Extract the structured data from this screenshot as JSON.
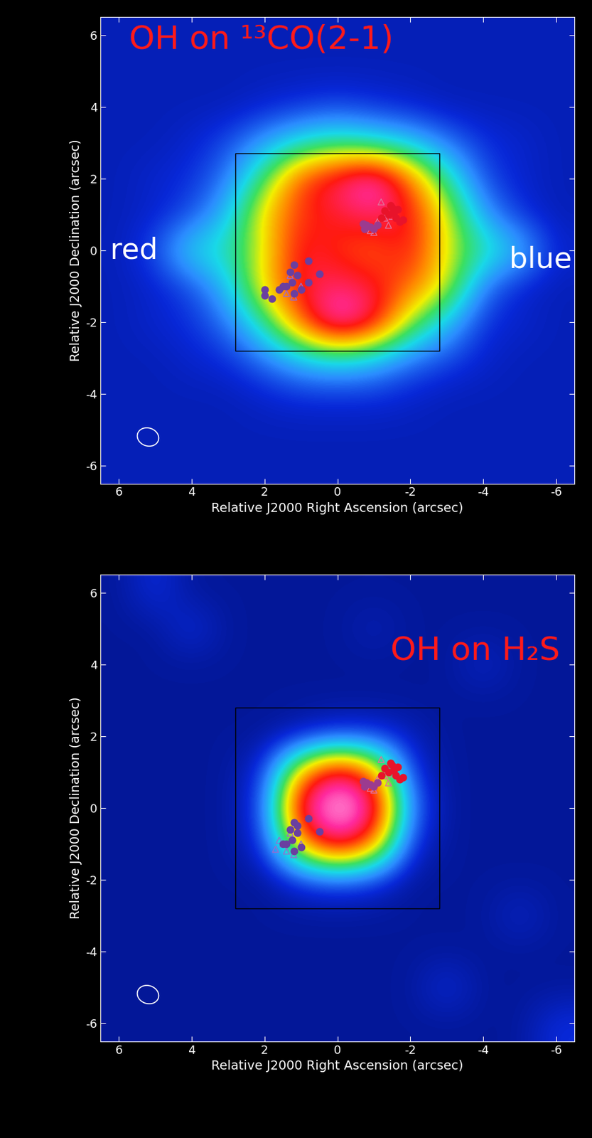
{
  "chart_data": [
    {
      "type": "heatmap",
      "title": "OH on ¹³CO(2-1)",
      "x_label": "Relative J2000 Right Ascension (arcsec)",
      "y_label": "Relative J2000 Declination (arcsec)",
      "xlim": [
        6.5,
        -6.5
      ],
      "ylim": [
        -6.5,
        6.5
      ],
      "xticks": [
        6,
        4,
        2,
        0,
        -2,
        -4,
        -6
      ],
      "yticks": [
        -6,
        -4,
        -2,
        0,
        2,
        4,
        6
      ],
      "annotations": [
        "red",
        "blue"
      ],
      "color_range": [
        0,
        1
      ],
      "cells": {
        "x": [
          6,
          5,
          4,
          3,
          2,
          1,
          0,
          -1,
          -2,
          -3,
          -4,
          -5,
          -6
        ],
        "y": [
          6,
          5,
          4,
          3,
          2,
          1,
          0,
          -1,
          -2,
          -3,
          -4,
          -5,
          -6
        ],
        "values": [
          [
            0.08,
            0.08,
            0.08,
            0.08,
            0.08,
            0.08,
            0.08,
            0.08,
            0.08,
            0.08,
            0.08,
            0.08,
            0.08
          ],
          [
            0.08,
            0.08,
            0.08,
            0.08,
            0.08,
            0.08,
            0.08,
            0.08,
            0.08,
            0.08,
            0.08,
            0.08,
            0.08
          ],
          [
            0.08,
            0.08,
            0.08,
            0.08,
            0.1,
            0.12,
            0.14,
            0.12,
            0.1,
            0.08,
            0.08,
            0.08,
            0.08
          ],
          [
            0.08,
            0.08,
            0.1,
            0.15,
            0.25,
            0.35,
            0.4,
            0.35,
            0.3,
            0.2,
            0.12,
            0.1,
            0.08
          ],
          [
            0.08,
            0.1,
            0.12,
            0.2,
            0.45,
            0.75,
            0.85,
            0.98,
            0.7,
            0.4,
            0.15,
            0.1,
            0.08
          ],
          [
            0.08,
            0.1,
            0.15,
            0.3,
            0.6,
            0.75,
            0.8,
            0.85,
            0.8,
            0.55,
            0.25,
            0.12,
            0.08
          ],
          [
            0.08,
            0.15,
            0.35,
            0.38,
            0.55,
            0.82,
            0.75,
            0.7,
            0.8,
            0.55,
            0.4,
            0.3,
            0.1
          ],
          [
            0.08,
            0.1,
            0.15,
            0.3,
            0.6,
            0.8,
            0.85,
            0.8,
            0.7,
            0.55,
            0.2,
            0.1,
            0.08
          ],
          [
            0.08,
            0.1,
            0.12,
            0.2,
            0.4,
            0.72,
            0.98,
            0.85,
            0.5,
            0.3,
            0.12,
            0.1,
            0.08
          ],
          [
            0.08,
            0.08,
            0.1,
            0.12,
            0.2,
            0.3,
            0.35,
            0.3,
            0.2,
            0.15,
            0.1,
            0.08,
            0.08
          ],
          [
            0.08,
            0.08,
            0.08,
            0.08,
            0.1,
            0.12,
            0.12,
            0.12,
            0.1,
            0.08,
            0.08,
            0.08,
            0.08
          ],
          [
            0.08,
            0.08,
            0.08,
            0.08,
            0.08,
            0.08,
            0.08,
            0.08,
            0.08,
            0.08,
            0.08,
            0.08,
            0.08
          ],
          [
            0.08,
            0.08,
            0.08,
            0.08,
            0.08,
            0.08,
            0.08,
            0.08,
            0.08,
            0.08,
            0.08,
            0.08,
            0.08
          ]
        ]
      },
      "box": {
        "x": [
          2.8,
          -2.8
        ],
        "y": [
          -2.8,
          2.7
        ]
      },
      "beam": {
        "x": 5.2,
        "y": -5.2,
        "width": 0.6,
        "height": 0.5
      },
      "series": [
        {
          "type": "scatter",
          "marker": "circle",
          "color": "#e8132a",
          "x": [
            -1.3,
            -1.4,
            -1.5,
            -1.6,
            -1.7,
            -1.8,
            -1.55,
            -1.45,
            -1.2,
            -1.65
          ],
          "y": [
            1.1,
            1.0,
            1.2,
            0.9,
            0.8,
            0.85,
            1.05,
            1.25,
            0.9,
            1.15
          ]
        },
        {
          "type": "scatter",
          "marker": "circle",
          "color": "#9b3b8f",
          "x": [
            -0.7,
            -0.8,
            -0.9,
            -1.0,
            -0.75,
            -1.1
          ],
          "y": [
            0.75,
            0.7,
            0.65,
            0.6,
            0.6,
            0.7
          ]
        },
        {
          "type": "scatter",
          "marker": "triangle",
          "color": "#e0709a",
          "x": [
            -1.2,
            -1.3,
            -1.0,
            -0.9,
            -1.4,
            -1.5,
            -1.1
          ],
          "y": [
            1.35,
            0.9,
            0.5,
            0.55,
            0.7,
            0.95,
            0.8
          ]
        },
        {
          "type": "scatter",
          "marker": "circle",
          "color": "#6a3fa0",
          "x": [
            1.2,
            1.3,
            1.1,
            1.25,
            1.0,
            1.2,
            1.4,
            0.8,
            0.5,
            0.8,
            1.5,
            2.0,
            2.0,
            1.8,
            1.6
          ],
          "y": [
            -0.4,
            -0.6,
            -0.7,
            -0.9,
            -1.1,
            -1.2,
            -1.0,
            -0.9,
            -0.65,
            -0.3,
            -1.0,
            -1.1,
            -1.25,
            -1.35,
            -1.1
          ]
        },
        {
          "type": "scatter",
          "marker": "triangle",
          "color": "#9a6ad0",
          "x": [
            1.3,
            1.5,
            1.2,
            1.0,
            1.4
          ],
          "y": [
            -0.7,
            -1.0,
            -1.3,
            -1.0,
            -1.2
          ]
        }
      ]
    },
    {
      "type": "heatmap",
      "title": "OH on H₂S",
      "x_label": "Relative J2000 Right Ascension (arcsec)",
      "y_label": "Relative J2000 Declination (arcsec)",
      "xlim": [
        6.5,
        -6.5
      ],
      "ylim": [
        -6.5,
        6.5
      ],
      "xticks": [
        6,
        4,
        2,
        0,
        -2,
        -4,
        -6
      ],
      "yticks": [
        -6,
        -4,
        -2,
        0,
        2,
        4,
        6
      ],
      "color_range": [
        0,
        1
      ],
      "cells": {
        "x": [
          6,
          5,
          4,
          3,
          2,
          1,
          0,
          -1,
          -2,
          -3,
          -4,
          -5,
          -6
        ],
        "y": [
          6,
          5,
          4,
          3,
          2,
          1,
          0,
          -1,
          -2,
          -3,
          -4,
          -5,
          -6
        ],
        "values": [
          [
            0.05,
            0.12,
            0.05,
            0.05,
            0.05,
            0.05,
            0.05,
            0.05,
            0.05,
            0.05,
            0.05,
            0.05,
            0.05
          ],
          [
            0.05,
            0.05,
            0.12,
            0.05,
            0.05,
            0.05,
            0.05,
            0.08,
            0.05,
            0.05,
            0.05,
            0.05,
            0.05
          ],
          [
            0.05,
            0.05,
            0.05,
            0.05,
            0.05,
            0.05,
            0.05,
            0.05,
            0.05,
            0.05,
            0.1,
            0.05,
            0.05
          ],
          [
            0.05,
            0.05,
            0.05,
            0.05,
            0.05,
            0.05,
            0.05,
            0.05,
            0.05,
            0.05,
            0.05,
            0.05,
            0.05
          ],
          [
            0.05,
            0.05,
            0.05,
            0.05,
            0.05,
            0.08,
            0.12,
            0.12,
            0.08,
            0.05,
            0.05,
            0.05,
            0.05
          ],
          [
            0.05,
            0.05,
            0.05,
            0.05,
            0.12,
            0.65,
            0.92,
            0.7,
            0.12,
            0.05,
            0.05,
            0.05,
            0.05
          ],
          [
            0.05,
            0.05,
            0.05,
            0.05,
            0.15,
            0.92,
            1.0,
            0.95,
            0.2,
            0.05,
            0.05,
            0.05,
            0.05
          ],
          [
            0.05,
            0.05,
            0.05,
            0.05,
            0.12,
            0.65,
            0.92,
            0.7,
            0.12,
            0.05,
            0.05,
            0.05,
            0.05
          ],
          [
            0.05,
            0.05,
            0.05,
            0.05,
            0.05,
            0.12,
            0.15,
            0.12,
            0.05,
            0.05,
            0.05,
            0.05,
            0.05
          ],
          [
            0.05,
            0.05,
            0.05,
            0.05,
            0.05,
            0.05,
            0.05,
            0.05,
            0.05,
            0.05,
            0.05,
            0.1,
            0.05
          ],
          [
            0.05,
            0.05,
            0.05,
            0.05,
            0.05,
            0.05,
            0.05,
            0.05,
            0.05,
            0.05,
            0.05,
            0.05,
            0.05
          ],
          [
            0.05,
            0.05,
            0.05,
            0.05,
            0.05,
            0.05,
            0.05,
            0.05,
            0.05,
            0.12,
            0.05,
            0.05,
            0.05
          ],
          [
            0.05,
            0.05,
            0.05,
            0.05,
            0.05,
            0.05,
            0.05,
            0.05,
            0.05,
            0.05,
            0.05,
            0.05,
            0.12
          ]
        ]
      },
      "box": {
        "x": [
          2.8,
          -2.8
        ],
        "y": [
          -2.8,
          2.8
        ]
      },
      "beam": {
        "x": 5.2,
        "y": -5.2,
        "width": 0.6,
        "height": 0.5
      },
      "series": [
        {
          "type": "scatter",
          "marker": "circle",
          "color": "#e8132a",
          "x": [
            -1.3,
            -1.4,
            -1.5,
            -1.6,
            -1.7,
            -1.8,
            -1.55,
            -1.45,
            -1.2,
            -1.65
          ],
          "y": [
            1.1,
            1.0,
            1.2,
            0.9,
            0.8,
            0.85,
            1.05,
            1.25,
            0.9,
            1.15
          ]
        },
        {
          "type": "scatter",
          "marker": "circle",
          "color": "#9b3b8f",
          "x": [
            -0.7,
            -0.8,
            -0.9,
            -1.0,
            -0.75,
            -1.1
          ],
          "y": [
            0.75,
            0.7,
            0.65,
            0.6,
            0.6,
            0.7
          ]
        },
        {
          "type": "scatter",
          "marker": "triangle",
          "color": "#e0709a",
          "x": [
            -1.2,
            -1.3,
            -1.0,
            -0.9,
            -1.4,
            -1.5,
            -1.1
          ],
          "y": [
            1.35,
            0.9,
            0.5,
            0.55,
            0.7,
            0.95,
            0.8
          ]
        },
        {
          "type": "scatter",
          "marker": "circle",
          "color": "#6a3fa0",
          "x": [
            1.2,
            1.3,
            1.1,
            1.25,
            1.0,
            1.2,
            1.4,
            0.5,
            0.8,
            1.5,
            1.1
          ],
          "y": [
            -0.4,
            -0.6,
            -0.7,
            -0.9,
            -1.1,
            -1.2,
            -1.0,
            -0.65,
            -0.3,
            -1.0,
            -0.5
          ]
        },
        {
          "type": "scatter",
          "marker": "triangle",
          "color": "#9a6ad0",
          "x": [
            1.3,
            1.5,
            1.2,
            1.0,
            1.4,
            1.7,
            1.6
          ],
          "y": [
            -0.7,
            -1.0,
            -1.3,
            -1.0,
            -1.2,
            -1.15,
            -0.9
          ]
        }
      ]
    }
  ]
}
